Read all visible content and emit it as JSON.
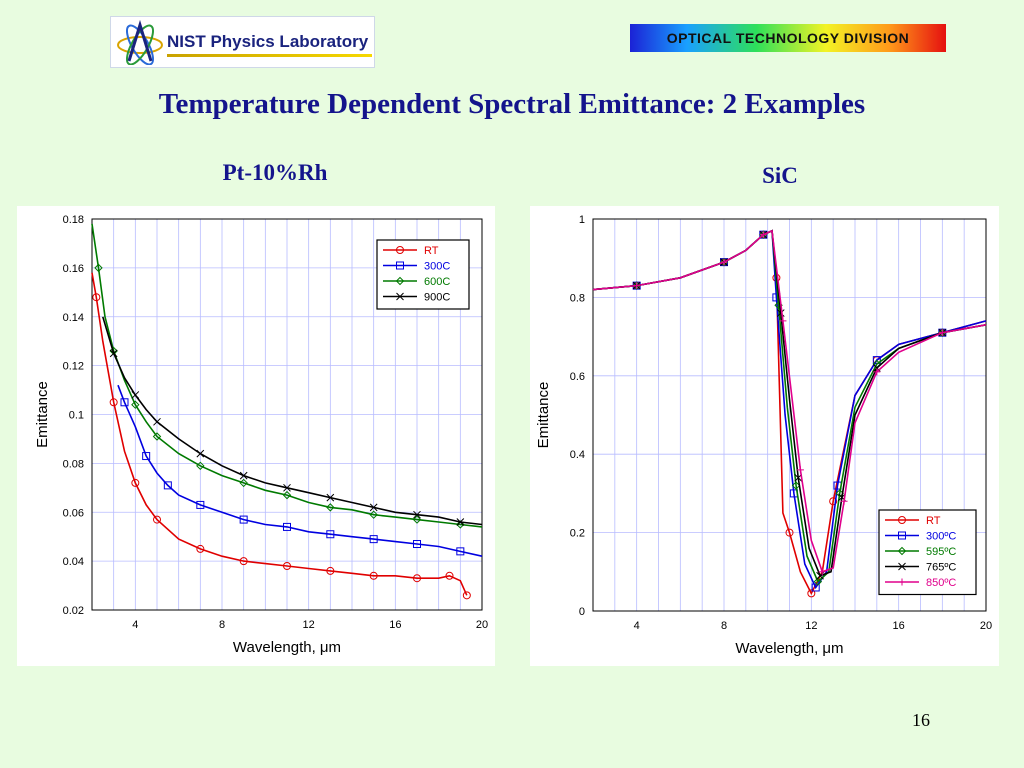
{
  "header": {
    "logo_text": "NIST Physics Laboratory",
    "division": "OPTICAL TECHNOLOGY DIVISION",
    "title": "Temperature Dependent Spectral Emittance: 2 Examples"
  },
  "page_number": "16",
  "colors": {
    "background": "#e8fce0",
    "title": "#14148c",
    "red": "#e00000",
    "blue": "#0000e0",
    "green": "#007a00",
    "black": "#000000",
    "magenta": "#e0008c"
  },
  "chart_data": [
    {
      "type": "line",
      "title": "Pt-10%Rh",
      "xlabel": "Wavelength, μm",
      "ylabel": "Emittance",
      "xlim": [
        2,
        20
      ],
      "ylim": [
        0.02,
        0.18
      ],
      "xticks": [
        4,
        8,
        12,
        16,
        20
      ],
      "yticks": [
        0.02,
        0.04,
        0.06,
        0.08,
        0.1,
        0.12,
        0.14,
        0.16,
        0.18
      ],
      "ytick_labels": [
        "0.02",
        "0.04",
        "0.06",
        "0.08",
        "0.1",
        "0.12",
        "0.14",
        "0.16",
        "0.18"
      ],
      "grid": true,
      "legend_position": "top-right",
      "series": [
        {
          "name": "RT",
          "color": "#e00000",
          "marker": "circle",
          "x": [
            2,
            2.2,
            2.5,
            3,
            3.5,
            4,
            4.5,
            5,
            6,
            7,
            8,
            9,
            10,
            11,
            12,
            13,
            14,
            15,
            16,
            17,
            18,
            18.5,
            19,
            19.3
          ],
          "y": [
            0.158,
            0.148,
            0.13,
            0.105,
            0.085,
            0.072,
            0.063,
            0.057,
            0.049,
            0.045,
            0.042,
            0.04,
            0.039,
            0.038,
            0.037,
            0.036,
            0.035,
            0.034,
            0.034,
            0.033,
            0.033,
            0.034,
            0.032,
            0.026
          ]
        },
        {
          "name": "300C",
          "color": "#0000e0",
          "marker": "square",
          "x": [
            3.2,
            3.5,
            4,
            4.5,
            5,
            5.5,
            6,
            7,
            8,
            9,
            10,
            11,
            12,
            13,
            14,
            15,
            16,
            17,
            18,
            19,
            20
          ],
          "y": [
            0.112,
            0.105,
            0.095,
            0.083,
            0.076,
            0.071,
            0.067,
            0.063,
            0.06,
            0.057,
            0.055,
            0.054,
            0.052,
            0.051,
            0.05,
            0.049,
            0.048,
            0.047,
            0.046,
            0.044,
            0.042
          ]
        },
        {
          "name": "600C",
          "color": "#007a00",
          "marker": "diamond",
          "x": [
            2,
            2.3,
            2.6,
            3,
            3.5,
            4,
            4.5,
            5,
            6,
            7,
            8,
            9,
            10,
            11,
            12,
            13,
            14,
            15,
            16,
            17,
            18,
            19,
            20
          ],
          "y": [
            0.178,
            0.16,
            0.14,
            0.126,
            0.114,
            0.104,
            0.097,
            0.091,
            0.084,
            0.079,
            0.075,
            0.072,
            0.069,
            0.067,
            0.064,
            0.062,
            0.061,
            0.059,
            0.058,
            0.057,
            0.056,
            0.055,
            0.054
          ]
        },
        {
          "name": "900C",
          "color": "#000000",
          "marker": "x",
          "x": [
            2.5,
            3,
            3.5,
            4,
            4.5,
            5,
            6,
            7,
            8,
            9,
            10,
            11,
            12,
            13,
            14,
            15,
            16,
            17,
            18,
            19,
            20
          ],
          "y": [
            0.14,
            0.125,
            0.115,
            0.108,
            0.102,
            0.097,
            0.09,
            0.084,
            0.079,
            0.075,
            0.072,
            0.07,
            0.068,
            0.066,
            0.064,
            0.062,
            0.06,
            0.059,
            0.058,
            0.056,
            0.055
          ]
        }
      ]
    },
    {
      "type": "line",
      "title": "SiC",
      "xlabel": "Wavelength, μm",
      "ylabel": "Emittance",
      "xlim": [
        2,
        20
      ],
      "ylim": [
        0,
        1
      ],
      "xticks": [
        4,
        8,
        12,
        16,
        20
      ],
      "yticks": [
        0,
        0.2,
        0.4,
        0.6,
        0.8,
        1
      ],
      "ytick_labels": [
        "0",
        "0.2",
        "0.4",
        "0.6",
        "0.8",
        "1"
      ],
      "grid": true,
      "legend_position": "bottom-right",
      "series": [
        {
          "name": "RT",
          "color": "#e00000",
          "marker": "circle",
          "x": [
            2,
            4,
            6,
            8,
            9,
            9.8,
            10.2,
            10.4,
            10.7,
            11,
            11.5,
            12,
            12.5,
            13,
            14,
            15,
            16,
            18,
            20
          ],
          "y": [
            0.82,
            0.83,
            0.85,
            0.89,
            0.92,
            0.96,
            0.97,
            0.85,
            0.25,
            0.2,
            0.1,
            0.045,
            0.1,
            0.28,
            0.55,
            0.64,
            0.68,
            0.71,
            0.74
          ]
        },
        {
          "name": "300ºC",
          "color": "#0000e0",
          "marker": "square",
          "x": [
            2,
            4,
            6,
            8,
            9,
            9.8,
            10.2,
            10.4,
            10.8,
            11.2,
            11.7,
            12.2,
            12.7,
            13.2,
            14,
            15,
            16,
            18,
            20
          ],
          "y": [
            0.82,
            0.83,
            0.85,
            0.89,
            0.92,
            0.96,
            0.97,
            0.8,
            0.5,
            0.3,
            0.12,
            0.06,
            0.1,
            0.32,
            0.55,
            0.64,
            0.68,
            0.71,
            0.74
          ]
        },
        {
          "name": "595ºC",
          "color": "#007a00",
          "marker": "diamond",
          "x": [
            2,
            4,
            6,
            8,
            9,
            9.8,
            10.2,
            10.5,
            10.9,
            11.3,
            11.8,
            12.3,
            12.8,
            13.3,
            14,
            15,
            16,
            18,
            20
          ],
          "y": [
            0.82,
            0.83,
            0.85,
            0.89,
            0.92,
            0.96,
            0.97,
            0.78,
            0.52,
            0.32,
            0.14,
            0.075,
            0.1,
            0.3,
            0.52,
            0.63,
            0.67,
            0.71,
            0.73
          ]
        },
        {
          "name": "765ºC",
          "color": "#000000",
          "marker": "x",
          "x": [
            2,
            4,
            6,
            8,
            9,
            9.8,
            10.2,
            10.6,
            11,
            11.4,
            11.9,
            12.4,
            12.9,
            13.4,
            14,
            15,
            16,
            18,
            20
          ],
          "y": [
            0.82,
            0.83,
            0.85,
            0.89,
            0.92,
            0.96,
            0.97,
            0.76,
            0.54,
            0.34,
            0.16,
            0.09,
            0.1,
            0.29,
            0.5,
            0.62,
            0.67,
            0.71,
            0.73
          ]
        },
        {
          "name": "850ºC",
          "color": "#e0008c",
          "marker": "plus",
          "x": [
            2,
            4,
            6,
            8,
            9,
            9.8,
            10.2,
            10.7,
            11.1,
            11.5,
            12,
            12.5,
            13,
            13.5,
            14,
            15,
            16,
            18,
            20
          ],
          "y": [
            0.82,
            0.83,
            0.85,
            0.89,
            0.92,
            0.96,
            0.97,
            0.74,
            0.55,
            0.36,
            0.18,
            0.1,
            0.11,
            0.28,
            0.48,
            0.61,
            0.66,
            0.71,
            0.73
          ]
        }
      ]
    }
  ]
}
